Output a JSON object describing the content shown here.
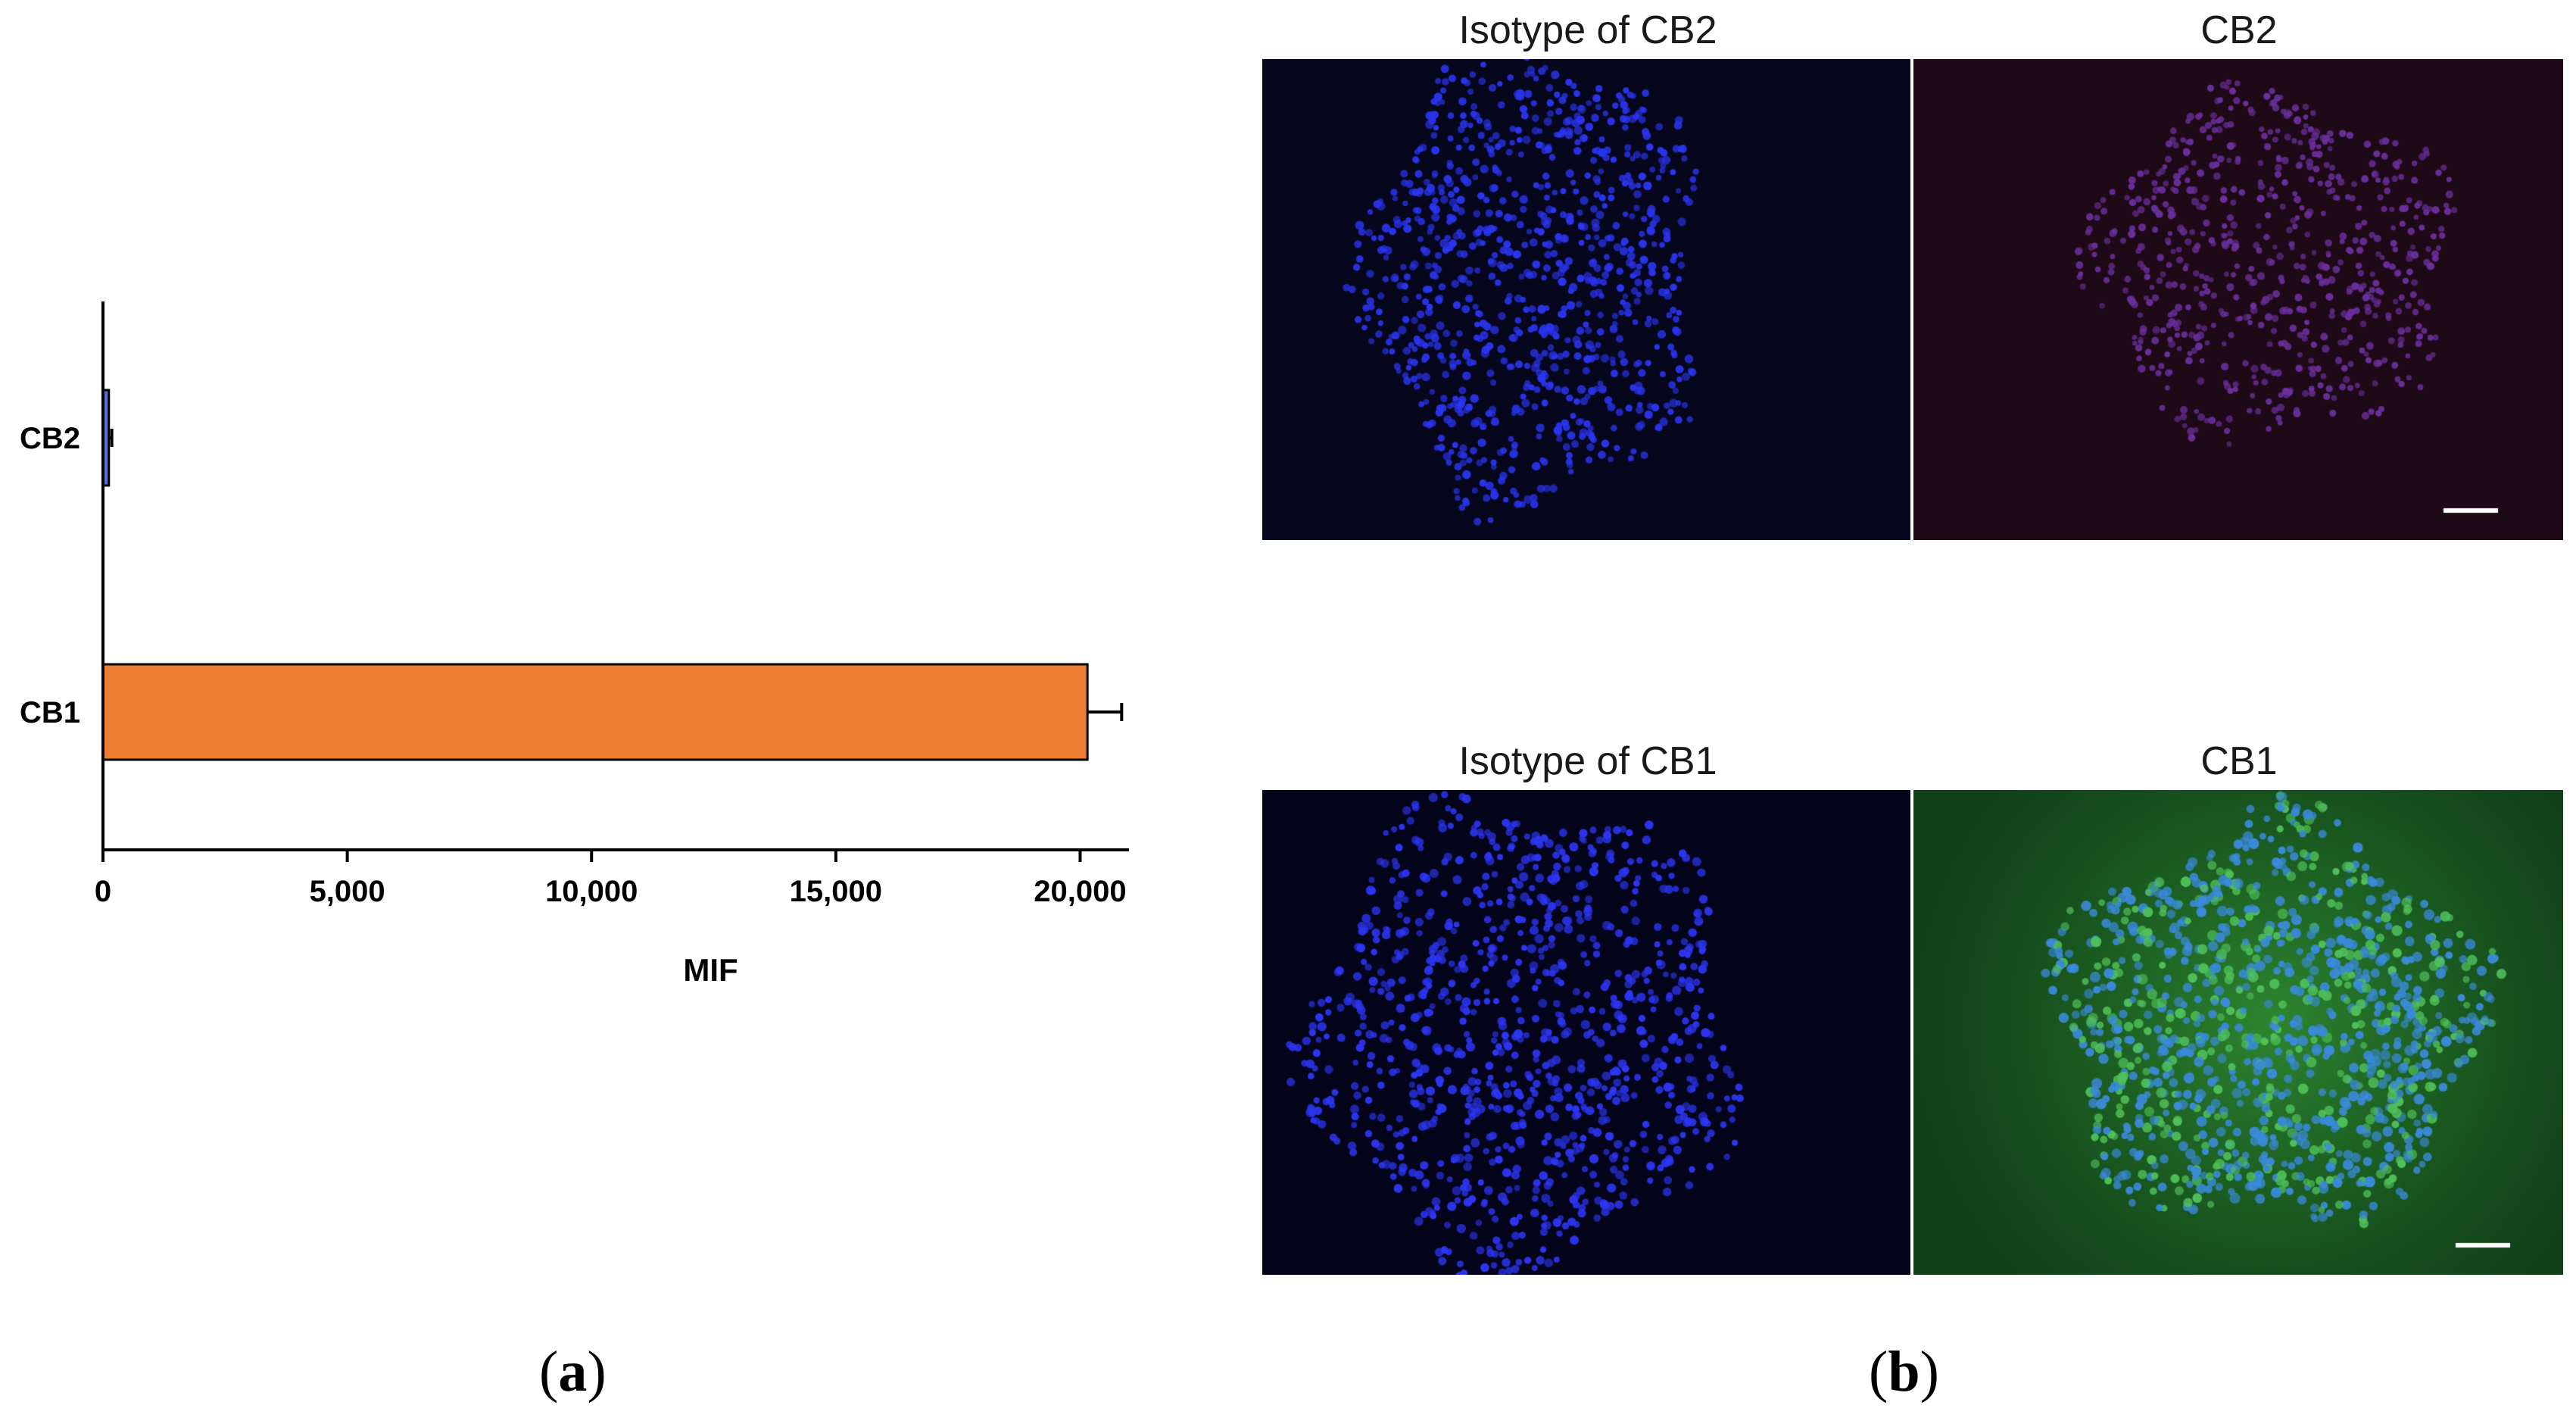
{
  "chart_data": {
    "type": "bar",
    "orientation": "horizontal",
    "categories": [
      "CB2",
      "CB1"
    ],
    "values": [
      120,
      20150
    ],
    "errors": [
      60,
      700
    ],
    "colors": [
      "#5b6fd6",
      "#ed7d31"
    ],
    "xlabel": "MIF",
    "ylabel": "",
    "xlim": [
      0,
      21000
    ],
    "xticks": [
      0,
      5000,
      10000,
      15000,
      20000
    ],
    "xtick_labels": [
      "0",
      "5,000",
      "10,000",
      "15,000",
      "20,000"
    ],
    "grid": false
  },
  "panels": {
    "a_label": "a",
    "b_label": "b"
  },
  "micrographs": [
    {
      "title": "Isotype of CB2",
      "bg": "#06061c",
      "cell": "#2a35ee",
      "glow": "none"
    },
    {
      "title": "CB2",
      "bg": "#1e0a16",
      "cell": "#6a2f9c",
      "glow": "none"
    },
    {
      "title": "Isotype of CB1",
      "bg": "#04041a",
      "cell": "#2c36f2",
      "glow": "none"
    },
    {
      "title": "CB1",
      "bg": "#0f3a16",
      "cell": "#3a8ad8",
      "glow": "green"
    }
  ]
}
